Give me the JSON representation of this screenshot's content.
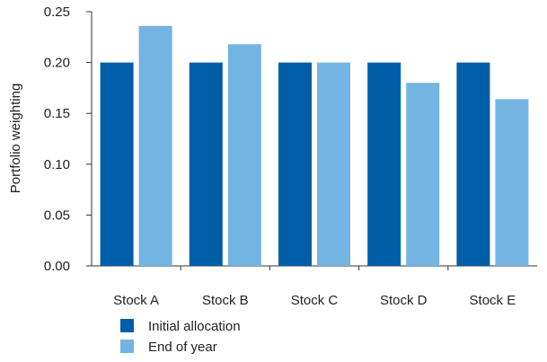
{
  "chart_data": {
    "type": "bar",
    "categories": [
      "Stock A",
      "Stock B",
      "Stock C",
      "Stock D",
      "Stock E"
    ],
    "series": [
      {
        "name": "Initial allocation",
        "color": "#005ea8",
        "values": [
          0.2,
          0.2,
          0.2,
          0.2,
          0.2
        ]
      },
      {
        "name": "End of year",
        "color": "#74b4e2",
        "values": [
          0.236,
          0.218,
          0.2,
          0.18,
          0.164
        ]
      }
    ],
    "ylabel": "Portfolio weighting",
    "ylim": [
      0,
      0.25
    ],
    "yticks": [
      "0.00",
      "0.05",
      "0.10",
      "0.15",
      "0.20",
      "0.25"
    ],
    "grid": false,
    "legend_position": "bottom-left"
  }
}
